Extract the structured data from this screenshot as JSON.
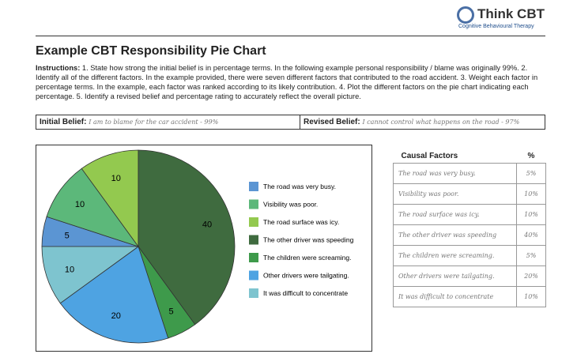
{
  "header": {
    "brand": "Think CBT",
    "tagline": "Cognitive Behavioural Therapy"
  },
  "title": "Example CBT Responsibility Pie Chart",
  "instructions": {
    "label": "Instructions:",
    "text": "1. State how strong the initial belief is in percentage terms. In the following example personal responsibility / blame was originally 99%. 2. Identify all of the different factors. In the example provided, there were seven different factors that contributed to the road accident. 3. Weight each factor in percentage terms. In the example, each factor was ranked according to its likely contribution. 4. Plot the different factors on the pie chart indicating each percentage. 5. Identify a revised belief and percentage rating to accurately reflect the overall picture."
  },
  "beliefs": {
    "initial_label": "Initial Belief:",
    "initial_text": "I am to blame for the car accident - 99%",
    "revised_label": "Revised Belief:",
    "revised_text": "I cannot control what happens on the road - 97%"
  },
  "chart_data": {
    "type": "pie",
    "categories": [
      "The road was very busy.",
      "Visibility was poor.",
      "The road surface was icy.",
      "The other driver was speeding",
      "The children were screaming.",
      "Other drivers were tailgating.",
      "It was difficult to concentrate"
    ],
    "values": [
      5,
      10,
      10,
      40,
      5,
      20,
      10
    ],
    "colors": [
      "#5b95d3",
      "#5cb87a",
      "#93c94f",
      "#3f6b3f",
      "#3e9a4b",
      "#4ea3e2",
      "#7ec4cf"
    ]
  },
  "table": {
    "header": [
      "Causal Factors",
      "%"
    ],
    "rows": [
      [
        "The road was very busy.",
        "5%"
      ],
      [
        "Visibility was poor.",
        "10%"
      ],
      [
        "The road surface was icy.",
        "10%"
      ],
      [
        "The other driver was speeding",
        "40%"
      ],
      [
        "The children were screaming.",
        "5%"
      ],
      [
        "Other drivers were tailgating.",
        "20%"
      ],
      [
        "It was difficult to concentrate",
        "10%"
      ]
    ]
  }
}
